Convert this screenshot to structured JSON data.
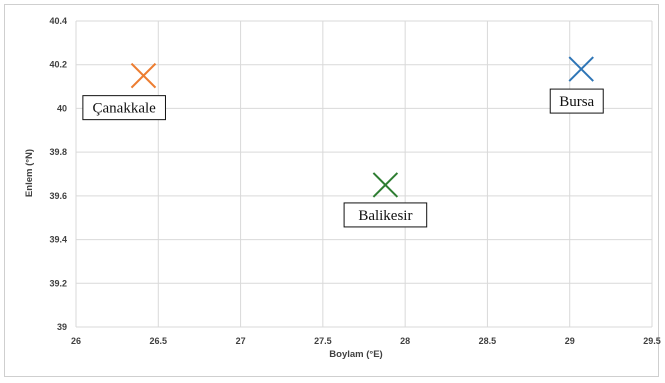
{
  "chart_data": {
    "type": "scatter",
    "title": "",
    "xlabel": "Boylam (°E)",
    "ylabel": "Enlem (°N)",
    "xlim": [
      26,
      29.5
    ],
    "ylim": [
      39,
      40.4
    ],
    "x_ticks": [
      "26",
      "26.5",
      "27",
      "27.5",
      "28",
      "28.5",
      "29",
      "29.5"
    ],
    "y_ticks": [
      "39",
      "39.2",
      "39.4",
      "39.6",
      "39.8",
      "40",
      "40.2",
      "40.4"
    ],
    "grid": true,
    "legend": "none",
    "marker": "x",
    "points": [
      {
        "label": "Çanakkale",
        "x": 26.41,
        "y": 40.15,
        "color": "#ed7d31",
        "label_position": "below-left"
      },
      {
        "label": "Balikesir",
        "x": 27.88,
        "y": 39.65,
        "color": "#2e7d32",
        "label_position": "below"
      },
      {
        "label": "Bursa",
        "x": 29.07,
        "y": 40.18,
        "color": "#2e75b6",
        "label_position": "below-left"
      }
    ]
  }
}
